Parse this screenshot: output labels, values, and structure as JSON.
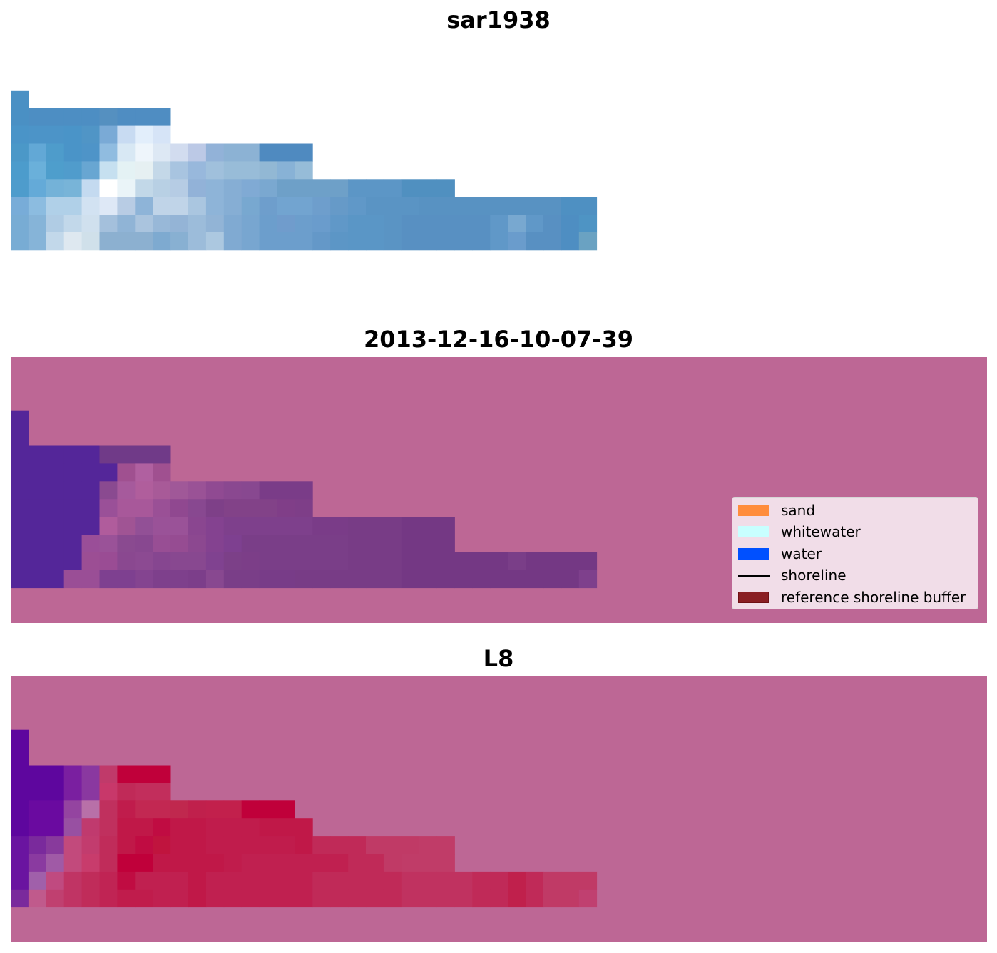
{
  "chart_data": [
    {
      "type": "heatmap",
      "title": "sar1938",
      "grid": false,
      "columns": 33,
      "rows": 10,
      "mask_color": "#ffffff",
      "cells": [
        [
          null,
          null,
          null,
          null,
          null,
          null,
          null,
          null,
          null,
          null,
          null,
          null,
          null,
          null,
          null,
          null,
          null,
          null,
          null,
          null,
          null,
          null,
          null,
          null,
          null,
          null,
          null,
          null,
          null,
          null,
          null,
          null,
          null
        ],
        [
          null,
          null,
          null,
          null,
          null,
          null,
          null,
          null,
          null,
          null,
          null,
          null,
          null,
          null,
          null,
          null,
          null,
          null,
          null,
          null,
          null,
          null,
          null,
          null,
          null,
          null,
          null,
          null,
          null,
          null,
          null,
          null,
          null
        ],
        [
          "#4a90c4",
          null,
          null,
          null,
          null,
          null,
          null,
          null,
          null,
          null,
          null,
          null,
          null,
          null,
          null,
          null,
          null,
          null,
          null,
          null,
          null,
          null,
          null,
          null,
          null,
          null,
          null,
          null,
          null,
          null,
          null,
          null,
          null
        ],
        [
          "#4a90c4",
          "#4d8ec3",
          "#4d8ec3",
          "#4d8ec3",
          "#4d8ec3",
          "#5590c0",
          "#4f8dc2",
          "#4f8dc2",
          "#4f8dc2",
          null,
          null,
          null,
          null,
          null,
          null,
          null,
          null,
          null,
          null,
          null,
          null,
          null,
          null,
          null,
          null,
          null,
          null,
          null,
          null,
          null,
          null,
          null,
          null
        ],
        [
          "#4a94c8",
          "#4c94c8",
          "#4c94c8",
          "#4a94c8",
          "#5095c6",
          "#7aaad6",
          "#c8dbf2",
          "#e2eefb",
          "#d6e4f7",
          null,
          null,
          null,
          null,
          null,
          null,
          null,
          null,
          null,
          null,
          null,
          null,
          null,
          null,
          null,
          null,
          null,
          null,
          null,
          null,
          null,
          null,
          null,
          null
        ],
        [
          "#4b98c8",
          "#62a8d6",
          "#4e9ccb",
          "#4a94c8",
          "#4e94c8",
          "#90bce0",
          "#d8e8f4",
          "#eef5fb",
          "#dde8f4",
          "#d2dcef",
          "#bcc9e6",
          "#92b2d8",
          "#8cb2d4",
          "#8cb2d4",
          "#4f8ac0",
          "#4f8ac0",
          "#4f8ac0",
          null,
          null,
          null,
          null,
          null,
          null,
          null,
          null,
          null,
          null,
          null,
          null,
          null,
          null,
          null,
          null
        ],
        [
          "#4c9ccc",
          "#6ab0da",
          "#4e9ecc",
          "#509ccc",
          "#68a6d2",
          "#c6e0f0",
          "#e4f2f4",
          "#e6f0f2",
          "#c4d8e8",
          "#a8c4e0",
          "#98b8dc",
          "#a0c0dc",
          "#98bcd8",
          "#98bcd8",
          "#92b8d4",
          "#88b2d6",
          "#96bcd8",
          null,
          null,
          null,
          null,
          null,
          null,
          null,
          null,
          null,
          null,
          null,
          null,
          null,
          null,
          null,
          null
        ],
        [
          "#4e9ccc",
          "#64aad8",
          "#74b2d8",
          "#78b4d8",
          "#c4daf0",
          "#ffffff",
          "#eaf4f8",
          "#c2d8e8",
          "#b8d0e4",
          "#b6cce4",
          "#92b2d8",
          "#8eb4d8",
          "#86aed4",
          "#80aad4",
          "#7aa8d0",
          "#6ea0c8",
          "#6ea0c8",
          "#6ea0c8",
          "#6ea0c8",
          "#5c96c6",
          "#5c96c6",
          "#5c96c6",
          "#5090c0",
          "#5090c0",
          "#5090c0",
          null,
          null,
          null,
          null,
          null,
          null,
          null,
          null
        ],
        [
          "#78acd8",
          "#8cbce0",
          "#b0d0e8",
          "#b0d0e8",
          "#d2e2f2",
          "#dee8f6",
          "#b8cce4",
          "#8eb4d8",
          "#c0d4e8",
          "#c0d4e8",
          "#aac6e0",
          "#8eb4d8",
          "#86aed4",
          "#78a8d0",
          "#6e9ecc",
          "#72a4d0",
          "#72a4d0",
          "#6e9ecc",
          "#669ac8",
          "#6098c8",
          "#5a94c4",
          "#5a94c4",
          "#5a94c4",
          "#5892c2",
          "#5892c2",
          "#5892c2",
          "#5892c2",
          "#5892c2",
          "#5892c2",
          "#5892c2",
          "#5892c2",
          "#4e90c2",
          "#4e90c2"
        ],
        [
          "#78acd4",
          "#86b4d8",
          "#b0cce4",
          "#c2d8ea",
          "#d0e0ee",
          "#a4c0dc",
          "#90b4d6",
          "#aac4de",
          "#98b8d8",
          "#94b4d6",
          "#9cbcda",
          "#92b4d6",
          "#80aad2",
          "#78a6d0",
          "#6c9ecc",
          "#709ccc",
          "#6c9ecc",
          "#6a9ccc",
          "#6098c8",
          "#5a96c6",
          "#5a96c6",
          "#5a94c4",
          "#5890c2",
          "#5890c2",
          "#5890c2",
          "#5890c2",
          "#5890c2",
          "#6098c8",
          "#78a8d0",
          "#6098c8",
          "#5890c2",
          "#4e8ec2",
          "#4e94c4"
        ],
        [
          "#78acd4",
          "#86b4d8",
          "#c2d8ea",
          "#dee8f0",
          "#d0e0ea",
          "#8cb0d0",
          "#8cb0d0",
          "#8cb0d0",
          "#7eaad0",
          "#88b0d2",
          "#9cbcda",
          "#acc8e0",
          "#80aad2",
          "#78a6d0",
          "#6c9ecc",
          "#6c9ecc",
          "#6c9ecc",
          "#6498c8",
          "#5c96c6",
          "#5a96c6",
          "#5a96c6",
          "#5a94c4",
          "#5890c2",
          "#5890c2",
          "#5890c2",
          "#5890c2",
          "#5890c2",
          "#6098c8",
          "#6a9ccc",
          "#5890c2",
          "#5890c2",
          "#4e8ec2",
          "#6aa2c2"
        ]
      ]
    },
    {
      "type": "heatmap",
      "title": "2013-12-16-10-07-39",
      "grid": false,
      "columns": 55,
      "rows": 15,
      "background_color": "#bd6795",
      "region_rows": [
        {
          "row": 3,
          "first_col": 0,
          "cells": [
            "#542699"
          ]
        },
        {
          "row": 4,
          "first_col": 0,
          "cells": [
            "#542699"
          ]
        },
        {
          "row": 5,
          "first_col": 0,
          "cells": [
            "#542699",
            "#542699",
            "#542699",
            "#542699",
            "#542699",
            "#703a88",
            "#703a88",
            "#703a88",
            "#703a88"
          ]
        },
        {
          "row": 6,
          "first_col": 0,
          "cells": [
            "#542699",
            "#542699",
            "#542699",
            "#542699",
            "#542699",
            "#542699",
            "#a05090",
            "#b060a0",
            "#a05090"
          ]
        },
        {
          "row": 7,
          "first_col": 0,
          "cells": [
            "#542699",
            "#542699",
            "#542699",
            "#542699",
            "#542699",
            "#8a4a90",
            "#a65a9c",
            "#b05e9c",
            "#a85a98",
            "#a05898",
            "#9a5296",
            "#904a92",
            "#8a4890",
            "#884890",
            "#7a3c88",
            "#7a3c88",
            "#7a3c88"
          ]
        },
        {
          "row": 8,
          "first_col": 0,
          "cells": [
            "#542699",
            "#542699",
            "#542699",
            "#542699",
            "#542699",
            "#9a5098",
            "#a8589a",
            "#a8589a",
            "#9a5096",
            "#904890",
            "#884890",
            "#7e4088",
            "#824288",
            "#824288",
            "#824288",
            "#803e88",
            "#7e3e88"
          ]
        },
        {
          "row": 9,
          "first_col": 0,
          "cells": [
            "#542699",
            "#542699",
            "#542699",
            "#542699",
            "#542699",
            "#b05c9c",
            "#a05494",
            "#925096",
            "#9a5298",
            "#9a5298",
            "#8a4690",
            "#844290",
            "#7e408c",
            "#7e408c",
            "#7e408c",
            "#7e408c",
            "#7e408c",
            "#7a3c88",
            "#7a3c88",
            "#783c86",
            "#783c86",
            "#783c86",
            "#743884",
            "#743884",
            "#743884"
          ]
        },
        {
          "row": 10,
          "first_col": 0,
          "cells": [
            "#542699",
            "#542699",
            "#542699",
            "#542699",
            "#9a4e98",
            "#9a5298",
            "#8a4a90",
            "#884890",
            "#984e94",
            "#964c92",
            "#8c4890",
            "#844290",
            "#7e4090",
            "#7a3e88",
            "#7a3e88",
            "#7a3e88",
            "#7a3e88",
            "#7a3e88",
            "#7a3e88",
            "#783c86",
            "#783c86",
            "#783c86",
            "#743884",
            "#743884",
            "#743884"
          ]
        },
        {
          "row": 11,
          "first_col": 0,
          "cells": [
            "#542699",
            "#542699",
            "#542699",
            "#542699",
            "#9c4e94",
            "#9a4c94",
            "#8a4890",
            "#8c4a92",
            "#864690",
            "#884890",
            "#884890",
            "#804290",
            "#7c4088",
            "#7c3e88",
            "#7a3e88",
            "#7a3e88",
            "#7a3e88",
            "#7a3e88",
            "#7a3e88",
            "#783c86",
            "#783c86",
            "#783c86",
            "#743884",
            "#743884",
            "#743884",
            "#743884",
            "#743884",
            "#743884",
            "#7a3e88",
            "#743884",
            "#743884",
            "#743884",
            "#743884"
          ]
        },
        {
          "row": 12,
          "first_col": 0,
          "cells": [
            "#542699",
            "#542699",
            "#542699",
            "#9a4e96",
            "#9a4e96",
            "#7e4090",
            "#7e4090",
            "#844490",
            "#7e408c",
            "#7e408c",
            "#7c3e8a",
            "#884890",
            "#7a3e88",
            "#7a3e88",
            "#783c88",
            "#783c88",
            "#783c86",
            "#783c86",
            "#783c86",
            "#783c86",
            "#783c86",
            "#783c86",
            "#743884",
            "#743884",
            "#743884",
            "#743884",
            "#743884",
            "#743884",
            "#743884",
            "#743884",
            "#743884",
            "#743884",
            "#7e408c"
          ]
        }
      ],
      "legend": {
        "placement": "lower-right",
        "entries": [
          {
            "label": "sand",
            "kind": "patch",
            "color": "#ff8c3c"
          },
          {
            "label": "whitewater",
            "kind": "patch",
            "color": "#c8ffff"
          },
          {
            "label": "water",
            "kind": "patch",
            "color": "#0050ff"
          },
          {
            "label": "shoreline",
            "kind": "line",
            "color": "#000000"
          },
          {
            "label": "reference shoreline buffer",
            "kind": "patch",
            "color": "#8a1e23",
            "edge": "#8a1e23"
          }
        ]
      }
    },
    {
      "type": "heatmap",
      "title": "L8",
      "grid": false,
      "columns": 55,
      "rows": 15,
      "background_color": "#bd6795",
      "region_rows": [
        {
          "row": 3,
          "first_col": 0,
          "cells": [
            "#5e069e"
          ]
        },
        {
          "row": 4,
          "first_col": 0,
          "cells": [
            "#5e069e"
          ]
        },
        {
          "row": 5,
          "first_col": 0,
          "cells": [
            "#5e069e",
            "#5e069e",
            "#5e069e",
            "#7a1fa0",
            "#8a38a0",
            "#c03a6a",
            "#c0003a",
            "#c0003a",
            "#c0003a"
          ]
        },
        {
          "row": 6,
          "first_col": 0,
          "cells": [
            "#5e069e",
            "#5e069e",
            "#5e069e",
            "#7a1fa0",
            "#8a38a0",
            "#c8386a",
            "#c02a58",
            "#c22e5c",
            "#c22e5c"
          ]
        },
        {
          "row": 7,
          "first_col": 0,
          "cells": [
            "#5e069e",
            "#6a0aa0",
            "#6a0aa0",
            "#9444a0",
            "#b870a8",
            "#c0305e",
            "#c01c4c",
            "#c22852",
            "#c22852",
            "#c0284e",
            "#c0204c",
            "#c2204c",
            "#c2204c",
            "#c0003a",
            "#c0003a",
            "#c0003a"
          ]
        },
        {
          "row": 8,
          "first_col": 0,
          "cells": [
            "#5e069e",
            "#6a0aa0",
            "#6a0aa0",
            "#9850a2",
            "#c03a6e",
            "#c0305e",
            "#c01848",
            "#c01848",
            "#c00c42",
            "#c01848",
            "#c01848",
            "#c01c4c",
            "#c01c4c",
            "#c01c4c",
            "#c01848",
            "#c01848",
            "#c01848"
          ]
        },
        {
          "row": 9,
          "first_col": 0,
          "cells": [
            "#6a14a0",
            "#7a2a9c",
            "#883a9c",
            "#c24a7c",
            "#c23c6e",
            "#c02c5a",
            "#c01848",
            "#c00c42",
            "#c0143e",
            "#c01848",
            "#c01848",
            "#c01c4c",
            "#c01c4c",
            "#c01c4c",
            "#c01c4c",
            "#c01c4c",
            "#c01848",
            "#c02a58",
            "#c02a58",
            "#c02a58",
            "#c03a66",
            "#c03a66",
            "#c03a66",
            "#c03c68",
            "#c03c68"
          ]
        },
        {
          "row": 10,
          "first_col": 0,
          "cells": [
            "#6a14a0",
            "#8a3aa0",
            "#a05aa6",
            "#c24a7c",
            "#c83c6c",
            "#c02c5a",
            "#c0003a",
            "#c0003a",
            "#c01848",
            "#c01848",
            "#c01848",
            "#c01848",
            "#c01c4c",
            "#c02050",
            "#c02050",
            "#c02050",
            "#c02050",
            "#c02050",
            "#c02050",
            "#c02a58",
            "#c02a58",
            "#c03a66",
            "#c03c68",
            "#c03c68",
            "#c03c68"
          ]
        },
        {
          "row": 11,
          "first_col": 0,
          "cells": [
            "#6a14a0",
            "#a060aa",
            "#c04a80",
            "#c03464",
            "#c02c5a",
            "#c02454",
            "#c00c42",
            "#c02050",
            "#c02050",
            "#c02050",
            "#c01848",
            "#c02050",
            "#c02050",
            "#c02050",
            "#c02050",
            "#c02050",
            "#c02050",
            "#c02a58",
            "#c02a58",
            "#c02a58",
            "#c02a58",
            "#c02a58",
            "#c03260",
            "#c03260",
            "#c03260",
            "#c03260",
            "#c02a58",
            "#c02a58",
            "#c0204c",
            "#c02a58",
            "#c03a66",
            "#c03a66",
            "#c03a66"
          ]
        },
        {
          "row": 12,
          "first_col": 0,
          "cells": [
            "#7a2a9c",
            "#c05a8c",
            "#c04070",
            "#c03464",
            "#c02c5a",
            "#c02454",
            "#c01c4c",
            "#c01c4c",
            "#c02050",
            "#c02050",
            "#c01848",
            "#c02050",
            "#c02050",
            "#c02050",
            "#c02050",
            "#c02050",
            "#c02050",
            "#c02a58",
            "#c02a58",
            "#c02a58",
            "#c02a58",
            "#c02a58",
            "#c03260",
            "#c03260",
            "#c03260",
            "#c03260",
            "#c02a58",
            "#c02a58",
            "#c0204c",
            "#c02a58",
            "#c03a66",
            "#c03a66",
            "#c04070"
          ]
        }
      ]
    }
  ]
}
